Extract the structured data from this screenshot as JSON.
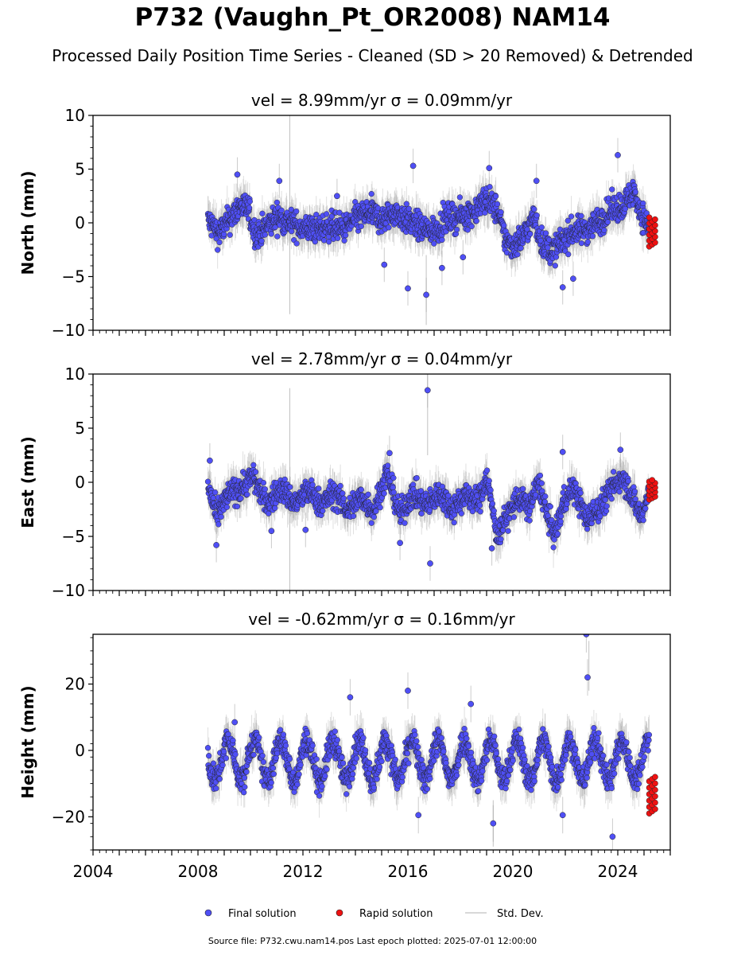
{
  "figure": {
    "title": "P732 (Vaughn_Pt_OR2008) NAM14",
    "subtitle": "Processed Daily Position Time Series - Cleaned (SD > 20 Removed) & Detrended",
    "source_note": "Source file: P732.cwu.nam14.pos  Last epoch plotted: 2025-07-01 12:00:00"
  },
  "colors": {
    "final_solution": "#4f4ff5",
    "rapid_solution": "#ee1111",
    "std_dev": "#9a9a9a",
    "marker_edge": "#222222"
  },
  "chart_data": [
    {
      "type": "scatter",
      "panel": "north",
      "title": "vel = 8.99mm/yr   σ = 0.09mm/yr",
      "ylabel": "North (mm)",
      "xlim": [
        2004.0,
        2026.0
      ],
      "ylim": [
        -10,
        10
      ],
      "yticks": [
        -10,
        -5,
        0,
        5,
        10
      ],
      "ytick_labels": [
        "−10",
        "−5",
        "0",
        "5",
        "10"
      ],
      "mean_curve": [
        [
          2008.4,
          0.2
        ],
        [
          2008.8,
          -1.0
        ],
        [
          2009.2,
          0.3
        ],
        [
          2009.6,
          1.6
        ],
        [
          2009.9,
          1.3
        ],
        [
          2010.2,
          -1.2
        ],
        [
          2010.6,
          -0.4
        ],
        [
          2011.0,
          0.6
        ],
        [
          2011.5,
          0.0
        ],
        [
          2012.0,
          -0.5
        ],
        [
          2012.6,
          -0.6
        ],
        [
          2013.0,
          -0.3
        ],
        [
          2013.6,
          -0.5
        ],
        [
          2014.0,
          0.4
        ],
        [
          2014.6,
          1.0
        ],
        [
          2015.0,
          0.2
        ],
        [
          2015.5,
          1.0
        ],
        [
          2016.0,
          0.2
        ],
        [
          2016.6,
          -0.6
        ],
        [
          2017.0,
          -0.8
        ],
        [
          2017.5,
          0.4
        ],
        [
          2018.0,
          0.6
        ],
        [
          2018.5,
          1.0
        ],
        [
          2019.0,
          2.3
        ],
        [
          2019.4,
          1.2
        ],
        [
          2019.7,
          -1.5
        ],
        [
          2020.0,
          -2.2
        ],
        [
          2020.4,
          -1.2
        ],
        [
          2020.8,
          0.5
        ],
        [
          2021.1,
          -1.8
        ],
        [
          2021.5,
          -2.8
        ],
        [
          2021.9,
          -1.6
        ],
        [
          2022.3,
          -0.8
        ],
        [
          2022.8,
          -0.6
        ],
        [
          2023.3,
          0.2
        ],
        [
          2023.8,
          1.3
        ],
        [
          2024.2,
          1.6
        ],
        [
          2024.6,
          3.0
        ],
        [
          2024.9,
          0.8
        ],
        [
          2025.2,
          -0.6
        ]
      ],
      "scatter_amp": 1.15,
      "std_band": 1.6,
      "outliers": [
        [
          2009.5,
          4.5
        ],
        [
          2011.1,
          3.9
        ],
        [
          2015.1,
          -3.9
        ],
        [
          2016.0,
          -6.1
        ],
        [
          2016.7,
          -6.7
        ],
        [
          2016.2,
          5.3
        ],
        [
          2017.3,
          -4.2
        ],
        [
          2018.1,
          -3.2
        ],
        [
          2021.9,
          -6.0
        ],
        [
          2022.3,
          -5.2
        ],
        [
          2024.0,
          6.3
        ],
        [
          2020.9,
          3.9
        ],
        [
          2013.3,
          2.5
        ],
        [
          2019.1,
          5.1
        ]
      ],
      "rapid": {
        "x_range": [
          2025.2,
          2025.42
        ],
        "y_min": -2.2,
        "y_max": 0.5,
        "count": 16
      },
      "spikes": [
        [
          2011.5,
          -8.5,
          10.0
        ],
        [
          2016.7,
          -9.5,
          -3.0
        ]
      ]
    },
    {
      "type": "scatter",
      "panel": "east",
      "title": "vel = 2.78mm/yr   σ = 0.04mm/yr",
      "ylabel": "East (mm)",
      "xlim": [
        2004.0,
        2026.0
      ],
      "ylim": [
        -10,
        10
      ],
      "yticks": [
        -10,
        -5,
        0,
        5,
        10
      ],
      "ytick_labels": [
        "−10",
        "−5",
        "0",
        "5",
        "10"
      ],
      "mean_curve": [
        [
          2008.4,
          -0.4
        ],
        [
          2008.7,
          -3.2
        ],
        [
          2009.2,
          -1.0
        ],
        [
          2009.6,
          -0.6
        ],
        [
          2010.1,
          0.6
        ],
        [
          2010.6,
          -2.0
        ],
        [
          2011.2,
          -0.6
        ],
        [
          2011.7,
          -2.0
        ],
        [
          2012.2,
          -0.8
        ],
        [
          2012.7,
          -2.0
        ],
        [
          2013.2,
          -1.0
        ],
        [
          2013.7,
          -2.6
        ],
        [
          2014.2,
          -1.4
        ],
        [
          2014.7,
          -2.6
        ],
        [
          2015.2,
          0.9
        ],
        [
          2015.7,
          -3.0
        ],
        [
          2016.2,
          -1.0
        ],
        [
          2016.7,
          -2.2
        ],
        [
          2017.2,
          -1.0
        ],
        [
          2017.7,
          -2.4
        ],
        [
          2018.2,
          -1.2
        ],
        [
          2018.7,
          -1.8
        ],
        [
          2019.0,
          0.6
        ],
        [
          2019.4,
          -5.0
        ],
        [
          2019.8,
          -3.0
        ],
        [
          2020.2,
          -1.4
        ],
        [
          2020.6,
          -2.4
        ],
        [
          2021.0,
          0.0
        ],
        [
          2021.3,
          -3.0
        ],
        [
          2021.6,
          -5.0
        ],
        [
          2021.9,
          -2.0
        ],
        [
          2022.3,
          -0.4
        ],
        [
          2022.8,
          -3.4
        ],
        [
          2023.3,
          -2.4
        ],
        [
          2023.8,
          -0.4
        ],
        [
          2024.2,
          0.6
        ],
        [
          2024.6,
          -1.6
        ],
        [
          2024.9,
          -3.2
        ],
        [
          2025.2,
          -1.0
        ]
      ],
      "scatter_amp": 1.1,
      "std_band": 1.6,
      "outliers": [
        [
          2008.45,
          2.0
        ],
        [
          2008.7,
          -5.8
        ],
        [
          2016.75,
          8.5
        ],
        [
          2016.85,
          -7.5
        ],
        [
          2015.7,
          -5.6
        ],
        [
          2021.9,
          2.8
        ],
        [
          2024.1,
          3.0
        ],
        [
          2015.3,
          2.7
        ],
        [
          2019.2,
          -6.1
        ],
        [
          2010.8,
          -4.5
        ],
        [
          2012.1,
          -4.4
        ]
      ],
      "rapid": {
        "x_range": [
          2025.2,
          2025.42
        ],
        "y_min": -1.6,
        "y_max": 0.2,
        "count": 14
      },
      "spikes": [
        [
          2011.5,
          -10.0,
          8.7
        ],
        [
          2016.75,
          2.5,
          10.0
        ]
      ]
    },
    {
      "type": "scatter",
      "panel": "height",
      "title": "vel = -0.62mm/yr   σ = 0.16mm/yr",
      "ylabel": "Height (mm)",
      "xlabel_ticks": [
        "2004",
        "2008",
        "2012",
        "2016",
        "2020",
        "2024"
      ],
      "xlim": [
        2004.0,
        2026.0
      ],
      "ylim": [
        -30,
        35
      ],
      "yticks": [
        -20,
        0,
        20
      ],
      "ytick_labels": [
        "−20",
        "0",
        "20"
      ],
      "seasonal": {
        "amplitude": 6.0,
        "base": -3.0,
        "phase": 0.1
      },
      "scatter_amp": 3.6,
      "std_band": 5.5,
      "outliers": [
        [
          2022.8,
          35.0
        ],
        [
          2022.85,
          22.0
        ],
        [
          2023.8,
          -26.0
        ],
        [
          2019.25,
          -22.0
        ],
        [
          2016.0,
          18.0
        ],
        [
          2013.8,
          16.0
        ],
        [
          2021.9,
          -19.5
        ],
        [
          2016.4,
          -19.5
        ],
        [
          2009.4,
          8.5
        ],
        [
          2018.4,
          14.0
        ]
      ],
      "rapid": {
        "x_range": [
          2025.2,
          2025.42
        ],
        "y_min": -19.0,
        "y_max": -8.0,
        "count": 18
      },
      "spikes": [
        [
          2022.9,
          18.0,
          33.0
        ],
        [
          2019.25,
          -29.0,
          -15.0
        ]
      ]
    }
  ],
  "legend": {
    "final_label": "Final solution",
    "rapid_label": "Rapid solution",
    "std_label": "Std. Dev."
  },
  "xaxis": {
    "major_ticks": [
      2004,
      2008,
      2012,
      2016,
      2020,
      2024
    ],
    "minor_step_years": 0.25,
    "tick_every_year": true
  }
}
